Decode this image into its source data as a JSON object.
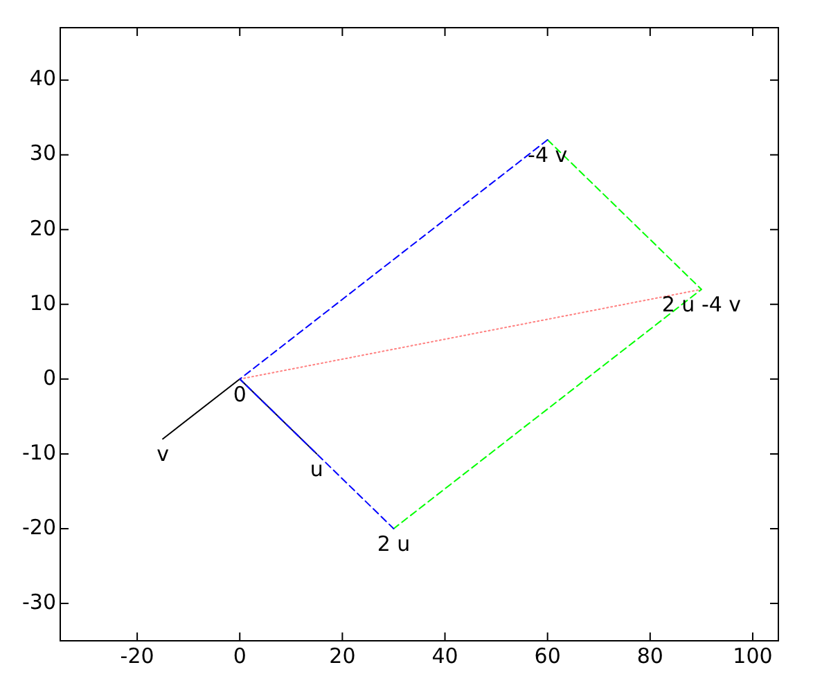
{
  "chart_data": {
    "type": "line",
    "xlim": [
      -35,
      105
    ],
    "xticks": [
      -20,
      0,
      20,
      40,
      60,
      80,
      100
    ],
    "ylim": [
      -35,
      47
    ],
    "yticks": [
      -30,
      -20,
      -10,
      0,
      10,
      20,
      30,
      40
    ],
    "grid": false,
    "legend": false,
    "marker": "none",
    "series": [
      {
        "color": "#0000ff",
        "line_style": "dashed",
        "x": [
          60,
          0,
          30
        ],
        "values": [
          32,
          0,
          -20
        ]
      },
      {
        "color": "#00ff00",
        "line_style": "dashed",
        "x": [
          60,
          90,
          30
        ],
        "values": [
          32,
          12,
          -20
        ]
      },
      {
        "color": "#ff8080",
        "line_style": "dotted",
        "x": [
          0,
          90
        ],
        "values": [
          0,
          12
        ]
      },
      {
        "color": "#000000",
        "line_style": "solid",
        "x": [
          0,
          -15
        ],
        "values": [
          0,
          -8
        ]
      },
      {
        "color": "#000040",
        "line_style": "solid",
        "x": [
          0,
          15
        ],
        "values": [
          0,
          -10
        ]
      }
    ],
    "annotations": [
      {
        "text": "0",
        "x": 0,
        "y": 0
      },
      {
        "text": "v",
        "x": -15,
        "y": -8
      },
      {
        "text": "u",
        "x": 15,
        "y": -10
      },
      {
        "text": "2 u",
        "x": 30,
        "y": -20
      },
      {
        "text": "-4 v",
        "x": 60,
        "y": 32
      },
      {
        "text": "2 u -4 v",
        "x": 90,
        "y": 12
      }
    ]
  }
}
